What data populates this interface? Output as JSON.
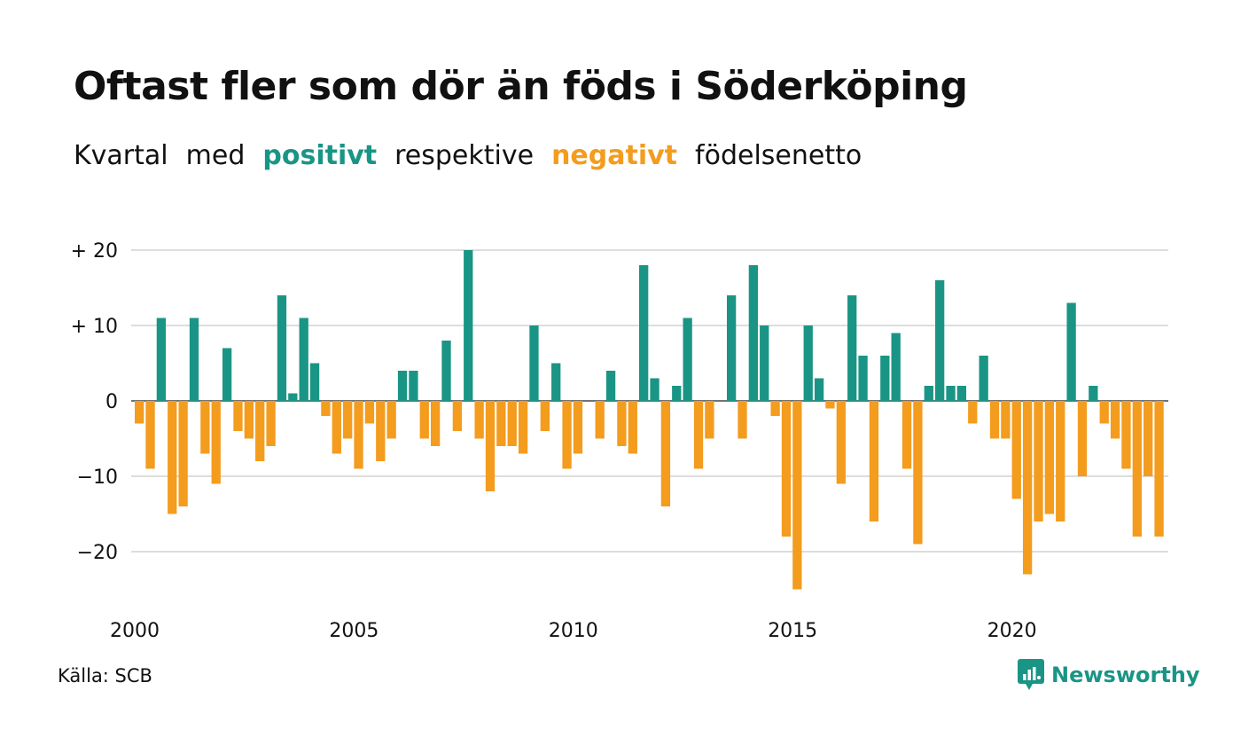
{
  "title": "Oftast fler som dör än föds i Söderköping",
  "subtitle": {
    "part1": "Kvartal",
    "part2": "med",
    "positive_word": "positivt",
    "part3": "respektive",
    "negative_word": "negativt",
    "part4": "födelsenetto"
  },
  "colors": {
    "positive": "#1a9585",
    "negative": "#f39c1e",
    "grid": "#dddddd",
    "text": "#111111"
  },
  "source": "Källa: SCB",
  "logo": {
    "text": "Newsworthy",
    "icon": "newsworthy-chart-bubble-icon"
  },
  "chart_data": {
    "type": "bar",
    "start_year": 2000,
    "quarters_per_year": 4,
    "x_ticks": [
      {
        "value": 2000,
        "label": "2000"
      },
      {
        "value": 2005,
        "label": "2005"
      },
      {
        "value": 2010,
        "label": "2010"
      },
      {
        "value": 2015,
        "label": "2015"
      },
      {
        "value": 2020,
        "label": "2020"
      }
    ],
    "y_ticks": [
      {
        "value": 20,
        "label": "+ 20"
      },
      {
        "value": 10,
        "label": "+ 10"
      },
      {
        "value": 0,
        "label": "0"
      },
      {
        "value": -10,
        "label": "−10"
      },
      {
        "value": -20,
        "label": "−20"
      }
    ],
    "ylim": [
      -25,
      20
    ],
    "grid": true,
    "values": [
      -3,
      -9,
      11,
      -15,
      -14,
      11,
      -7,
      -11,
      7,
      -4,
      -5,
      -8,
      -6,
      14,
      1,
      11,
      5,
      -2,
      -7,
      -5,
      -9,
      -3,
      -8,
      -5,
      4,
      4,
      -5,
      -6,
      8,
      -4,
      20,
      -5,
      -12,
      -6,
      -6,
      -7,
      10,
      -4,
      5,
      -9,
      -7,
      0,
      -5,
      4,
      -6,
      -7,
      18,
      3,
      -14,
      2,
      11,
      -9,
      -5,
      0,
      14,
      -5,
      18,
      10,
      -2,
      -18,
      -25,
      10,
      3,
      -1,
      -11,
      14,
      6,
      -16,
      6,
      9,
      -9,
      -19,
      2,
      16,
      2,
      2,
      -3,
      6,
      -5,
      -5,
      -13,
      -23,
      -16,
      -15,
      -16,
      13,
      -10,
      2,
      -3,
      -5,
      -9,
      -18,
      -10,
      -18
    ]
  }
}
